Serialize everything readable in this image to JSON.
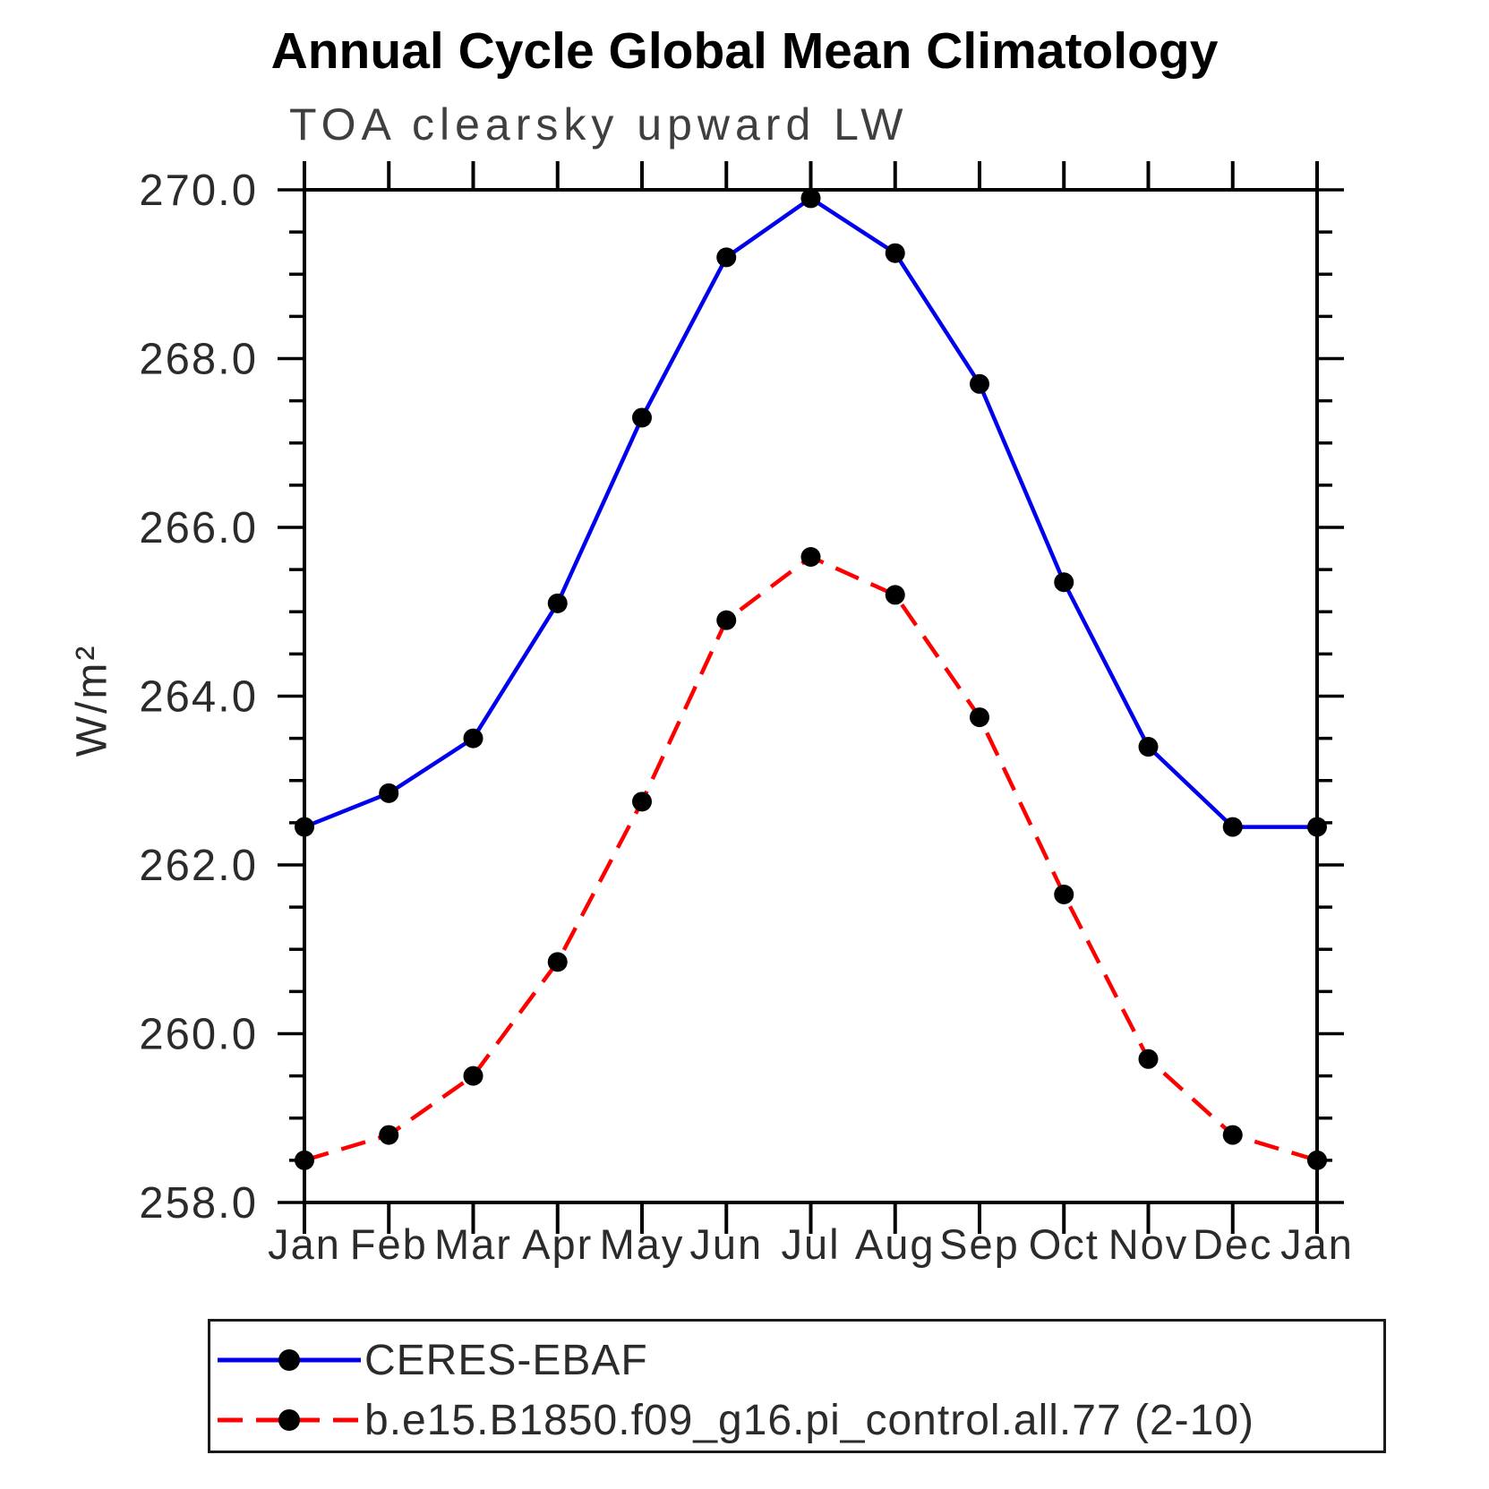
{
  "title": "Annual Cycle Global Mean Climatology",
  "subtitle": "TOA clearsky upward LW",
  "ylabel": "W/m²",
  "colors": {
    "ceres": "#0000ee",
    "model": "#ff0000",
    "marker": "#000000",
    "axis": "#000000"
  },
  "legend": {
    "entries": [
      {
        "label": "CERES-EBAF",
        "color": "#0000ee",
        "style": "solid"
      },
      {
        "label": "b.e15.B1850.f09_g16.pi_control.all.77 (2-10)",
        "color": "#ff0000",
        "style": "dashed"
      }
    ]
  },
  "chart_data": {
    "type": "line",
    "title": "Annual Cycle Global Mean Climatology",
    "subtitle": "TOA clearsky upward LW",
    "xlabel": "",
    "ylabel": "W/m²",
    "x": [
      "Jan",
      "Feb",
      "Mar",
      "Apr",
      "May",
      "Jun",
      "Jul",
      "Aug",
      "Sep",
      "Oct",
      "Nov",
      "Dec",
      "Jan"
    ],
    "series": [
      {
        "name": "CERES-EBAF",
        "color": "#0000ee",
        "line_style": "solid",
        "marker": "filled-circle",
        "values": [
          262.45,
          262.85,
          263.5,
          265.1,
          267.3,
          269.2,
          269.9,
          269.25,
          267.7,
          265.35,
          263.4,
          262.45,
          262.45
        ]
      },
      {
        "name": "b.e15.B1850.f09_g16.pi_control.all.77 (2-10)",
        "color": "#ff0000",
        "line_style": "dashed",
        "marker": "filled-circle",
        "values": [
          258.5,
          258.8,
          259.5,
          260.85,
          262.75,
          264.9,
          265.65,
          265.2,
          263.75,
          261.65,
          259.7,
          258.8,
          258.5
        ]
      }
    ],
    "ylim": [
      258.0,
      270.0
    ],
    "y_major_step": 2.0,
    "y_minor_step": 0.5,
    "y_tick_labels": [
      "258.0",
      "260.0",
      "262.0",
      "264.0",
      "266.0",
      "268.0",
      "270.0"
    ],
    "grid": false,
    "ticks": "outward-all-four-sides",
    "legend_position": "bottom"
  }
}
